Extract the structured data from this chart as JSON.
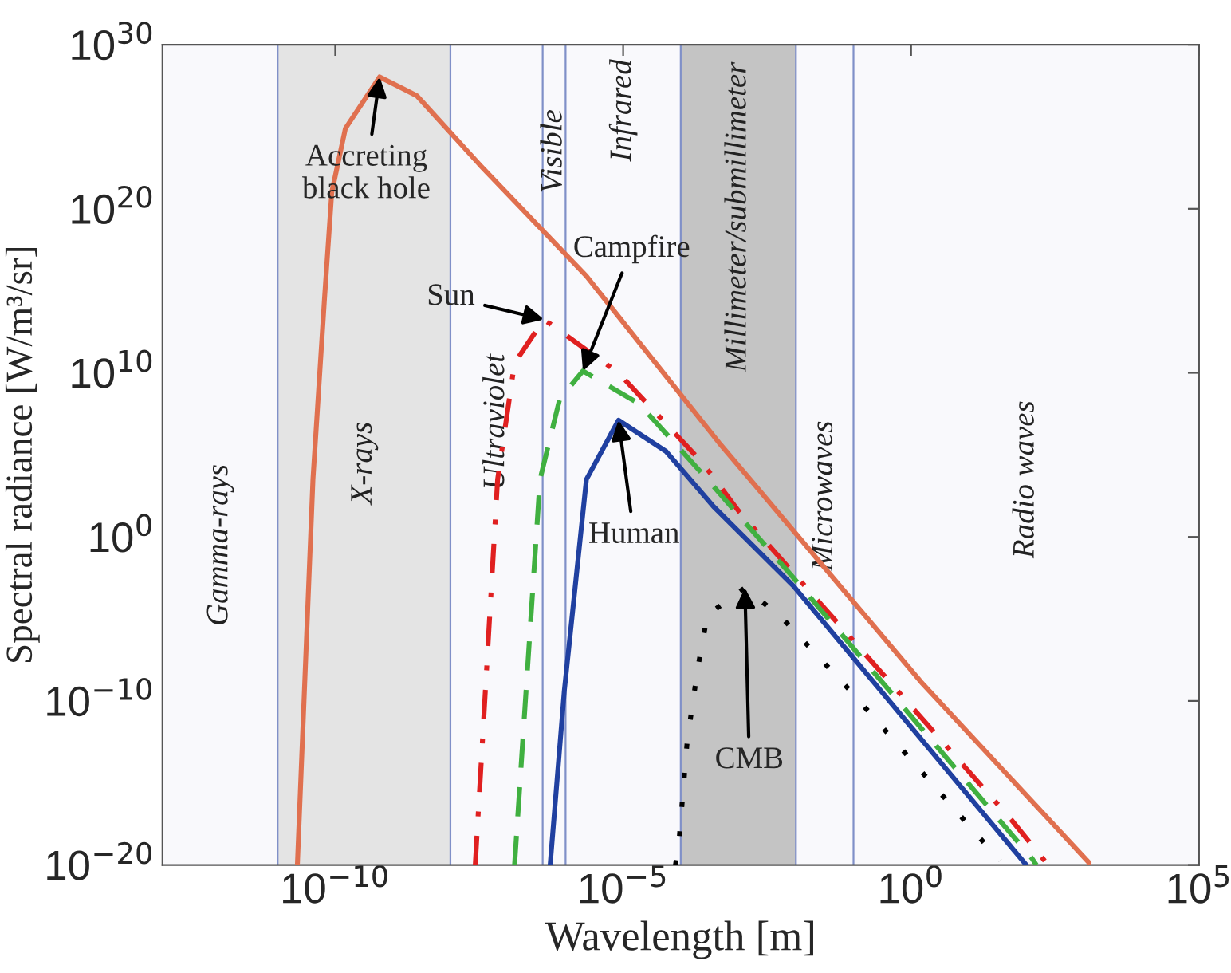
{
  "chart_data": {
    "type": "line",
    "xlabel": "Wavelength [m]",
    "ylabel": "Spectral radiance [W/m³/sr]",
    "log": "xy",
    "grid": false,
    "legend": false,
    "marker": "none",
    "xlim": [
      1e-13,
      100000
    ],
    "ylim": [
      1e-20,
      1e+30
    ],
    "xticks": [
      {
        "value": 1e-10,
        "label": "10$^{−10}$"
      },
      {
        "value": 1e-05,
        "label": "10$^{−5}$"
      },
      {
        "value": 1,
        "label": "10$^{0}$"
      },
      {
        "value": 100000,
        "label": "10$^{5}$"
      }
    ],
    "yticks": [
      {
        "value": 1e-20,
        "label": "10$^{−20}$"
      },
      {
        "value": 1e-10,
        "label": "10$^{−10}$"
      },
      {
        "value": 1,
        "label": "10$^{0}$"
      },
      {
        "value": 10000000000.0,
        "label": "10$^{10}$"
      },
      {
        "value": 1e+20,
        "label": "10$^{20}$"
      },
      {
        "value": 1e+30,
        "label": "10$^{30}$"
      }
    ],
    "series": [
      {
        "color": "#e0704f",
        "line_style": "solid",
        "x": [
          2.2e-11,
          4.1e-11,
          6.5e-11,
          8.7e-11,
          1.5e-10,
          5.9e-10,
          2.6e-09,
          3.2e-08,
          2.3e-06,
          0.00046,
          0.0016,
          1.5,
          1230
        ],
        "values": [
          1e-20,
          3200.0,
          320000000000000.0,
          1e+21,
          7.9e+24,
          1.1e+28,
          7.9e+26,
          5e+22,
          7900000000000000.0,
          560000.0,
          3200.0,
          1.4e-09,
          1.4e-20
        ]
      },
      {
        "color": "#e02020",
        "line_style": "dashdot",
        "x": [
          2.7e-08,
          6.6e-08,
          1.3e-07,
          4.2e-07,
          8.3e-06,
          0.00024,
          0.001,
          51,
          240
        ],
        "values": [
          1e-20,
          3200.0,
          40000000000.0,
          18000000000000.0,
          10000000000.0,
          32000.0,
          40,
          7.9e-18,
          1e-20
        ]
      },
      {
        "color": "#40b040",
        "line_style": "dashed",
        "x": [
          1.3e-07,
          3.6e-07,
          7.9e-07,
          2e-06,
          1.9e-05,
          0.00029,
          0.0091,
          126,
          150
        ],
        "values": [
          1e-20,
          3200.0,
          250000000.0,
          13000000000.0,
          130000000.0,
          3200.0,
          0.0032,
          2.5e-20,
          1e-20
        ]
      },
      {
        "color": "#2040a0",
        "line_style": "solid",
        "x": [
          5.4e-07,
          9.5e-07,
          2.3e-06,
          8.3e-06,
          5.6e-05,
          0.00037,
          0.0091,
          100
        ],
        "values": [
          1e-20,
          4e-10,
          3200.0,
          13000000.0,
          160000.0,
          72,
          0.001,
          1e-20
        ]
      },
      {
        "color": "#000000",
        "line_style": "dotted",
        "x": [
          8.1e-05,
          9.3e-05,
          0.00013,
          0.0002,
          0.00029,
          0.0013,
          0.0058,
          0.089,
          35
        ],
        "values": [
          1e-20,
          2.5e-19,
          4e-13,
          1.3e-08,
          1.7e-05,
          0.00079,
          1.1e-05,
          4e-10,
          1.8e-20
        ]
      }
    ],
    "bands": [
      {
        "axis": "x",
        "from": 1e-13,
        "to": 1e-11,
        "label": "Gamma-rays",
        "color": "#f9f9fc"
      },
      {
        "axis": "x",
        "from": 1e-11,
        "to": 1e-08,
        "label": "X-rays",
        "color": "#e4e4e4"
      },
      {
        "axis": "x",
        "from": 1e-08,
        "to": 4e-07,
        "label": "Ultraviolet",
        "color": "#f9f9fc"
      },
      {
        "axis": "x",
        "from": 4e-07,
        "to": 1e-06,
        "label": "Visible",
        "color": "#f9f9fc"
      },
      {
        "axis": "x",
        "from": 1e-06,
        "to": 0.0001,
        "label": "Infrared",
        "color": "#f9f9fc"
      },
      {
        "axis": "x",
        "from": 0.0001,
        "to": 0.01,
        "label": "Millimeter/submillimeter",
        "color": "#c4c4c4"
      },
      {
        "axis": "x",
        "from": 0.01,
        "to": 0.1,
        "label": "Microwaves",
        "color": "#f9f9fc"
      },
      {
        "axis": "x",
        "from": 0.1,
        "to": 100000,
        "label": "Radio waves",
        "color": "#f9f9fc"
      }
    ],
    "ref_lines": [
      {
        "axis": "x",
        "value": 1e-11,
        "color": "#8090c8"
      },
      {
        "axis": "x",
        "value": 1e-08,
        "color": "#8090c8"
      },
      {
        "axis": "x",
        "value": 4e-07,
        "color": "#8090c8"
      },
      {
        "axis": "x",
        "value": 1e-06,
        "color": "#8090c8"
      },
      {
        "axis": "x",
        "value": 0.0001,
        "color": "#8090c8"
      },
      {
        "axis": "x",
        "value": 0.01,
        "color": "#8090c8"
      },
      {
        "axis": "x",
        "value": 0.1,
        "color": "#8090c8"
      }
    ],
    "annotations": [
      {
        "text": "Accreting\nblack hole",
        "x": 5.9e-10,
        "y": 1.1e+28
      },
      {
        "text": "Sun",
        "x": 4.2e-07,
        "y": 18000000000000.0
      },
      {
        "text": "Campfire",
        "x": 2e-06,
        "y": 13000000000.0
      },
      {
        "text": "Human",
        "x": 8.3e-06,
        "y": 13000000.0
      },
      {
        "text": "CMB",
        "x": 0.0013,
        "y": 0.00079
      }
    ]
  }
}
